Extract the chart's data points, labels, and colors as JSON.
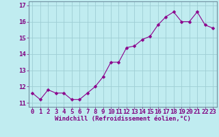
{
  "x": [
    0,
    1,
    2,
    3,
    4,
    5,
    6,
    7,
    8,
    9,
    10,
    11,
    12,
    13,
    14,
    15,
    16,
    17,
    18,
    19,
    20,
    21,
    22,
    23
  ],
  "y": [
    11.6,
    11.2,
    11.8,
    11.6,
    11.6,
    11.2,
    11.2,
    11.6,
    12.0,
    12.6,
    13.5,
    13.5,
    14.4,
    14.5,
    14.9,
    15.1,
    15.8,
    16.3,
    16.6,
    16.0,
    16.0,
    16.6,
    15.8,
    15.6
  ],
  "line_color": "#8B008B",
  "marker_color": "#8B008B",
  "bg_color": "#C0ECF0",
  "grid_color": "#9ECDD4",
  "xlabel": "Windchill (Refroidissement éolien,°C)",
  "ylabel_ticks": [
    11,
    12,
    13,
    14,
    15,
    16,
    17
  ],
  "ylim": [
    10.75,
    17.25
  ],
  "xlim": [
    -0.5,
    23.5
  ],
  "xlabel_fontsize": 6.5,
  "tick_fontsize": 6.5,
  "label_color": "#800080"
}
